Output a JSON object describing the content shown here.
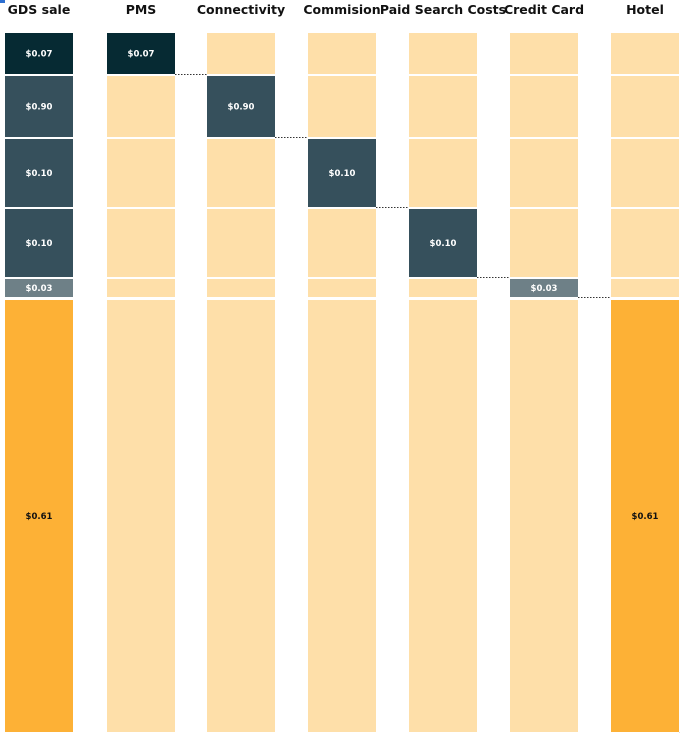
{
  "chart_data": {
    "type": "bar",
    "title": "",
    "categories": [
      "GDS sale",
      "PMS",
      "Connectivity",
      "Commision",
      "Paid Search Costs",
      "Credit Card",
      "Hotel"
    ],
    "segments": [
      {
        "name": "PMS",
        "value": 0.07,
        "label": "$0.07",
        "color": "#062a33",
        "text_color": "#ffffff"
      },
      {
        "name": "Connectivity",
        "value": 0.9,
        "label": "$0.90",
        "color": "#36505c",
        "text_color": "#ffffff"
      },
      {
        "name": "Commision",
        "value": 0.1,
        "label": "$0.10",
        "color": "#36505c",
        "text_color": "#ffffff"
      },
      {
        "name": "Paid Search Costs",
        "value": 0.1,
        "label": "$0.10",
        "color": "#36505c",
        "text_color": "#ffffff"
      },
      {
        "name": "Credit Card",
        "value": 0.03,
        "label": "$0.03",
        "color": "#6e8087",
        "text_color": "#ffffff"
      },
      {
        "name": "Hotel",
        "value": 0.61,
        "label": "$0.61",
        "color": "#fdb136",
        "text_color": "#111111"
      }
    ],
    "highlight_by_column": [
      [
        0,
        1,
        2,
        3,
        4,
        5
      ],
      [
        0
      ],
      [
        1
      ],
      [
        2
      ],
      [
        3
      ],
      [
        4
      ],
      [
        5
      ]
    ],
    "background_color": "#fedfa9"
  }
}
